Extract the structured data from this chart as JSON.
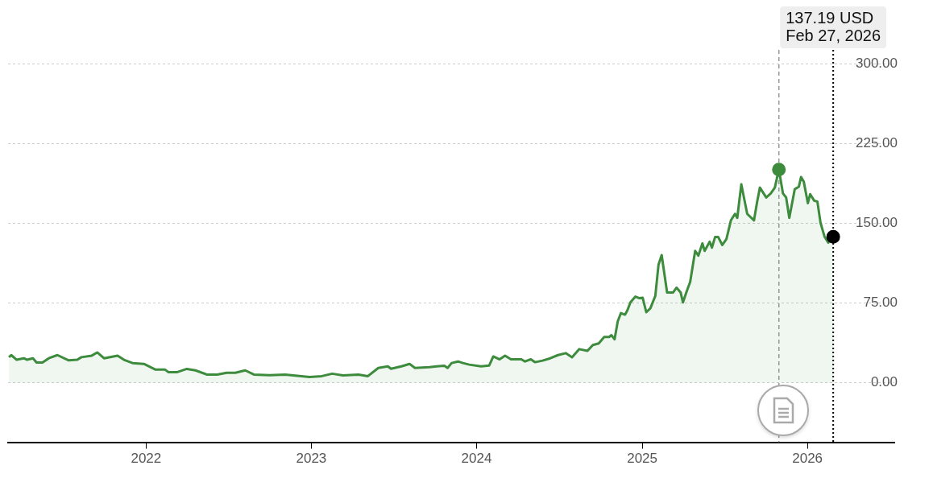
{
  "chart_data": {
    "type": "area",
    "xlim": [
      "2021-03-02",
      "2026-07-12"
    ],
    "xticks": [
      {
        "value": "2022-01-01",
        "label": "2022"
      },
      {
        "value": "2023-01-01",
        "label": "2023"
      },
      {
        "value": "2024-01-01",
        "label": "2024"
      },
      {
        "value": "2025-01-01",
        "label": "2025"
      },
      {
        "value": "2026-01-01",
        "label": "2026"
      }
    ],
    "ylim": [
      -56,
      313
    ],
    "yticks": [
      {
        "value": 0,
        "label": "0.00"
      },
      {
        "value": 75,
        "label": "75.00"
      },
      {
        "value": 150,
        "label": "150.00"
      },
      {
        "value": 225,
        "label": "225.00"
      },
      {
        "value": 300,
        "label": "300.00"
      }
    ],
    "grid": "y",
    "legend": false,
    "marker": "none",
    "line_style": "solid",
    "series": [
      {
        "color": "#3d8b3d",
        "x": [
          "2021-03-04",
          "2021-03-09",
          "2021-03-21",
          "2021-04-06",
          "2021-04-13",
          "2021-04-26",
          "2021-05-04",
          "2021-05-17",
          "2021-05-31",
          "2021-06-19",
          "2021-07-14",
          "2021-08-02",
          "2021-08-11",
          "2021-09-03",
          "2021-09-15",
          "2021-09-30",
          "2021-10-30",
          "2021-11-13",
          "2021-12-02",
          "2021-12-27",
          "2022-01-22",
          "2022-02-12",
          "2022-02-19",
          "2022-03-11",
          "2022-04-01",
          "2022-04-20",
          "2022-05-15",
          "2022-06-07",
          "2022-06-28",
          "2022-07-17",
          "2022-08-08",
          "2022-08-27",
          "2022-10-01",
          "2022-11-04",
          "2022-12-28",
          "2023-01-24",
          "2023-02-16",
          "2023-03-12",
          "2023-04-15",
          "2023-05-06",
          "2023-05-29",
          "2023-06-19",
          "2023-06-26",
          "2023-07-19",
          "2023-08-06",
          "2023-08-18",
          "2023-09-19",
          "2023-10-05",
          "2023-10-22",
          "2023-10-29",
          "2023-11-07",
          "2023-11-21",
          "2023-12-02",
          "2023-12-16",
          "2024-01-11",
          "2024-01-29",
          "2024-02-07",
          "2024-02-21",
          "2024-03-04",
          "2024-03-17",
          "2024-04-09",
          "2024-04-17",
          "2024-04-30",
          "2024-05-09",
          "2024-05-26",
          "2024-06-12",
          "2024-06-29",
          "2024-07-16",
          "2024-07-30",
          "2024-08-15",
          "2024-09-02",
          "2024-09-14",
          "2024-09-27",
          "2024-10-09",
          "2024-10-20",
          "2024-10-25",
          "2024-11-01",
          "2024-11-08",
          "2024-11-15",
          "2024-11-24",
          "2024-11-29",
          "2024-12-06",
          "2024-12-17",
          "2024-12-26",
          "2025-01-02",
          "2025-01-10",
          "2025-01-19",
          "2025-01-30",
          "2025-02-06",
          "2025-02-13",
          "2025-02-25",
          "2025-03-10",
          "2025-03-18",
          "2025-03-27",
          "2025-04-01",
          "2025-04-09",
          "2025-04-17",
          "2025-04-28",
          "2025-05-05",
          "2025-05-14",
          "2025-05-19",
          "2025-05-30",
          "2025-06-04",
          "2025-06-11",
          "2025-06-18",
          "2025-06-27",
          "2025-07-06",
          "2025-07-16",
          "2025-07-25",
          "2025-07-30",
          "2025-08-08",
          "2025-08-13",
          "2025-08-21",
          "2025-09-05",
          "2025-09-12",
          "2025-09-18",
          "2025-10-02",
          "2025-10-12",
          "2025-10-21",
          "2025-10-30",
          "2025-11-08",
          "2025-11-15",
          "2025-11-22",
          "2025-12-04",
          "2025-12-13",
          "2025-12-18",
          "2025-12-24",
          "2026-01-02",
          "2026-01-07",
          "2026-01-16",
          "2026-01-23",
          "2026-01-30",
          "2026-02-08",
          "2026-02-16",
          "2026-02-27"
        ],
        "values": [
          24,
          26,
          21.6,
          23,
          21.6,
          23,
          19,
          19,
          23,
          26,
          21,
          21.6,
          24,
          25.5,
          28.5,
          23,
          25.5,
          21.6,
          18.5,
          17.7,
          12.3,
          12.3,
          10,
          10,
          13,
          11.6,
          7.7,
          7.7,
          9.3,
          9.3,
          11.6,
          7.7,
          7,
          7.7,
          5.4,
          6.2,
          8.5,
          6.9,
          7.7,
          6.2,
          13.9,
          15.4,
          13.1,
          15.4,
          17.7,
          13.9,
          14.6,
          15.4,
          16,
          13.9,
          18.5,
          20,
          18.5,
          17,
          15.4,
          16.2,
          24.7,
          22,
          25.4,
          22,
          22,
          20,
          22,
          19.3,
          20.8,
          23,
          26,
          27.8,
          23.9,
          31.6,
          30,
          35.5,
          37,
          43,
          43,
          44.7,
          40.9,
          57.8,
          65.5,
          64,
          67.8,
          75.6,
          81,
          79.5,
          80,
          66.3,
          70,
          81.7,
          111,
          120,
          84.8,
          84.8,
          89.4,
          84.8,
          75.6,
          85.6,
          94.8,
          124,
          119.5,
          131,
          124,
          132.6,
          127,
          137,
          137,
          129.5,
          135,
          152.7,
          158.8,
          155,
          186.6,
          175.8,
          158.8,
          152.7,
          170.4,
          183.5,
          174.2,
          178,
          183.5,
          200.5,
          178,
          174.2,
          155,
          182,
          184.3,
          193.5,
          189,
          168.9,
          177.3,
          171.2,
          170.4,
          150.3,
          137.2,
          131.8,
          137.19
        ]
      },
      {
        "type": "scatter",
        "marker": "circle",
        "color": "#3d8b3d",
        "x": [
          "2025-10-30"
        ],
        "values": [
          200.5
        ]
      },
      {
        "type": "scatter",
        "marker": "circle",
        "color": "#000000",
        "x": [
          "2026-02-27"
        ],
        "values": [
          137.19
        ]
      }
    ],
    "ref_lines": [
      {
        "axis": "x",
        "value": "2025-10-30",
        "color": "#999999",
        "line_style": "dashed"
      },
      {
        "axis": "x",
        "value": "2026-02-27",
        "color": "#000000",
        "line_style": "dotted"
      }
    ],
    "annotations": [
      "137.19 USD",
      "Feb 27, 2026"
    ]
  }
}
